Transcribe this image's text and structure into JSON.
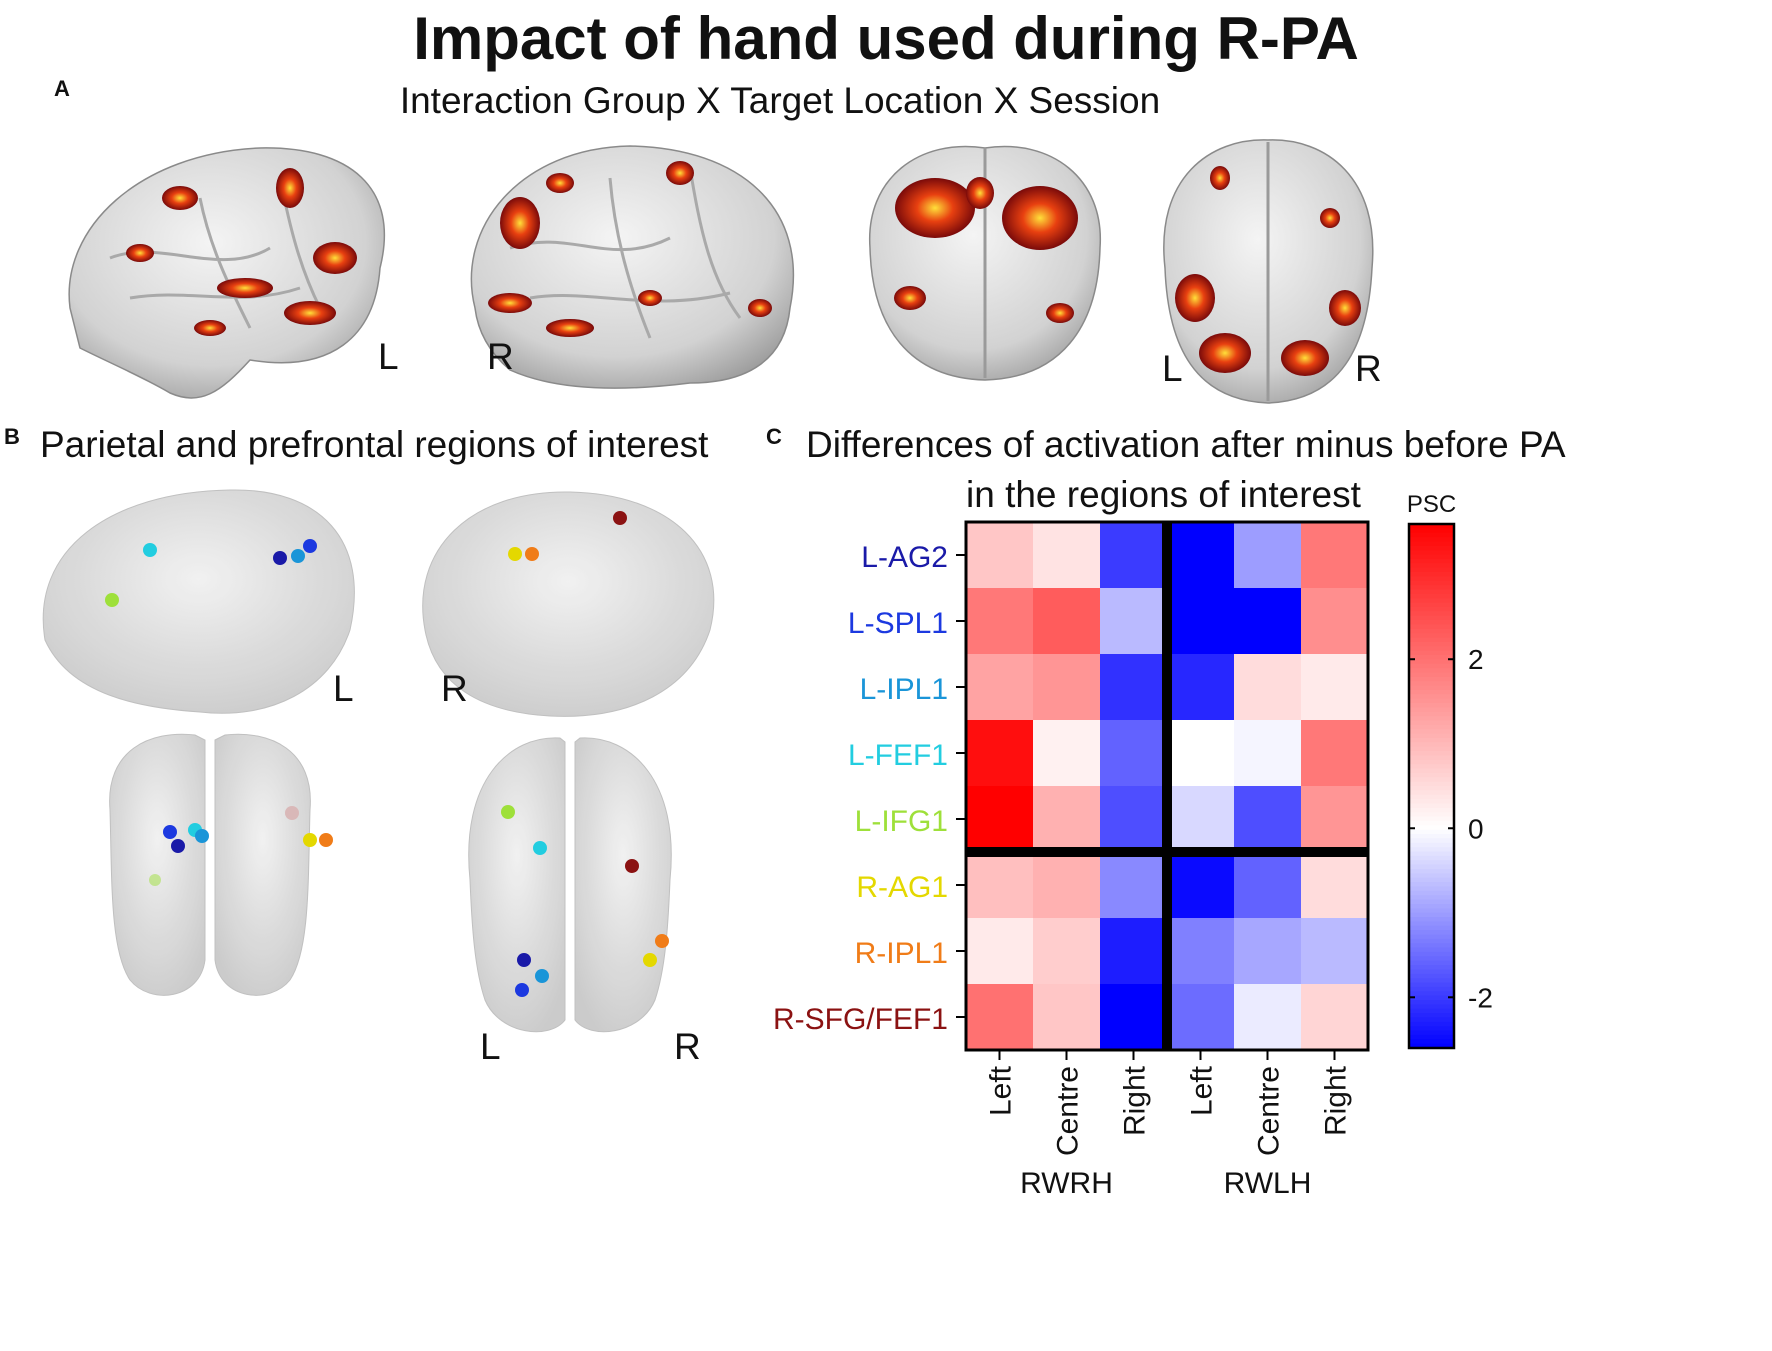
{
  "figure": {
    "title": "Impact of hand used during R-PA",
    "panels": [
      {
        "letter": "A",
        "title": "Interaction Group X Target Location X Session"
      },
      {
        "letter": "B",
        "title": "Parietal and prefrontal regions of interest"
      },
      {
        "letter": "C",
        "title_line1": "Differences of activation after minus before PA",
        "title_line2": "in the regions of interest"
      }
    ],
    "side_labels": {
      "left": "L",
      "right": "R"
    }
  },
  "chart_data": {
    "type": "heatmap",
    "title": "Differences of activation after minus before PA in the regions of interest",
    "rows": [
      "L-AG2",
      "L-SPL1",
      "L-IPL1",
      "L-FEF1",
      "L-IFG1",
      "R-AG1",
      "R-IPL1",
      "R-SFG/FEF1"
    ],
    "row_colors": [
      "#1a1aa8",
      "#1c39e0",
      "#1a95d8",
      "#22cde0",
      "#9ee03a",
      "#e4d800",
      "#f07c18",
      "#8b1212"
    ],
    "columns": [
      "Left",
      "Centre",
      "Right",
      "Left",
      "Centre",
      "Right"
    ],
    "column_groups": [
      {
        "label": "RWRH",
        "span": 3
      },
      {
        "label": "RWLH",
        "span": 3
      }
    ],
    "values": [
      [
        0.8,
        0.4,
        -2.0,
        -2.6,
        -1.0,
        1.9
      ],
      [
        1.9,
        2.3,
        -0.7,
        -2.6,
        -2.6,
        1.6
      ],
      [
        1.3,
        1.5,
        -2.1,
        -2.2,
        0.5,
        0.3
      ],
      [
        3.4,
        0.2,
        -1.6,
        0.0,
        -0.1,
        1.9
      ],
      [
        3.6,
        1.1,
        -1.8,
        -0.4,
        -1.8,
        1.5
      ],
      [
        0.9,
        1.1,
        -1.2,
        -2.5,
        -1.6,
        0.5
      ],
      [
        0.3,
        0.7,
        -2.3,
        -1.3,
        -0.9,
        -0.7
      ],
      [
        2.0,
        0.8,
        -2.6,
        -1.5,
        -0.2,
        0.6
      ]
    ],
    "colorbar": {
      "label": "PSC",
      "ticks": [
        -2,
        0,
        2
      ],
      "range": [
        -2.6,
        3.6
      ],
      "colormap": "bwr"
    }
  }
}
